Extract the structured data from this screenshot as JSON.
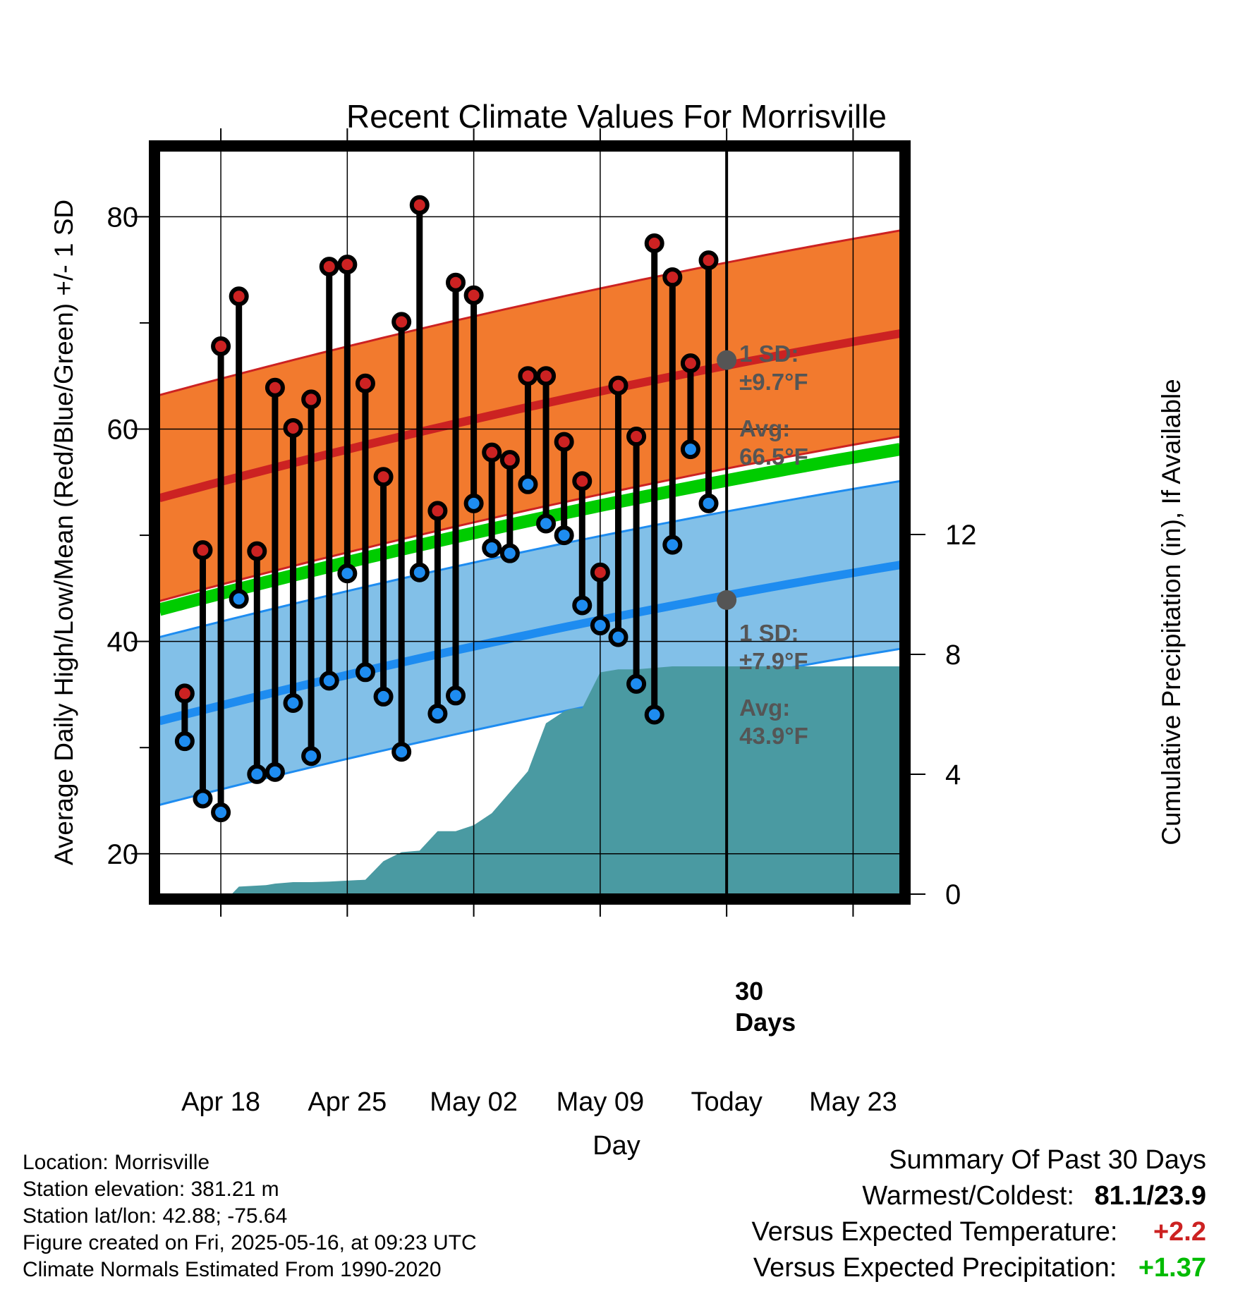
{
  "chart_data": {
    "type": "line",
    "title": "Recent Climate Values For Morrisville",
    "xlabel": "Day",
    "ylabel": "Average Daily High/Low/Mean (Red/Blue/Green) +/- 1 SD",
    "y2label": "Cumulative Precipitation (in), If Available",
    "ylim": [
      16.2,
      86.2
    ],
    "y2lim": [
      0,
      24.8
    ],
    "yticks": [
      "20",
      "40",
      "60",
      "80"
    ],
    "y2ticks": [
      "0",
      "4",
      "8",
      "12"
    ],
    "xlim": [
      -3.4,
      37.6
    ],
    "xticks": [
      {
        "day": 0,
        "label": "Apr 18"
      },
      {
        "day": 7,
        "label": "Apr 25"
      },
      {
        "day": 14,
        "label": "May 02"
      },
      {
        "day": 21,
        "label": "May 09"
      },
      {
        "day": 28,
        "label": "Today"
      },
      {
        "day": 35,
        "label": "May 23"
      }
    ],
    "today_day": 28,
    "today_label": "30 Days",
    "grid": true,
    "colors": {
      "high": "#cc2222",
      "high_band": "#f27a2e",
      "low": "#1e8cf0",
      "low_band": "#82c0e8",
      "mean": "#00cc00",
      "precip": "#4a9aa2",
      "annot": "#555555"
    },
    "normal_high": {
      "start": 53.5,
      "end": 69.0,
      "sd": 9.7
    },
    "normal_low": {
      "start": 32.5,
      "end": 47.2,
      "sd": 7.9
    },
    "normal_mean": {
      "start": 43.0,
      "end": 58.1
    },
    "annotations": {
      "high_sd": "1 SD:",
      "high_sd_value": "±9.7°F",
      "high_avg": "Avg:",
      "high_avg_value": "66.5°F",
      "low_sd": "1 SD:",
      "low_sd_value": "±7.9°F",
      "low_avg": "Avg:",
      "low_avg_value": "43.9°F",
      "high_avg_num": 66.5,
      "low_avg_num": 43.9
    },
    "series": [
      {
        "name": "High",
        "values": [
          35.1,
          48.6,
          67.8,
          72.5,
          48.5,
          63.9,
          60.1,
          62.8,
          75.3,
          75.5,
          64.3,
          55.5,
          70.1,
          81.1,
          52.3,
          73.8,
          72.6,
          57.8,
          57.1,
          65.0,
          65.0,
          58.8,
          55.1,
          46.5,
          64.1,
          59.3,
          77.5,
          74.3,
          66.2,
          75.9
        ]
      },
      {
        "name": "Low",
        "values": [
          30.6,
          25.2,
          23.9,
          44.0,
          27.5,
          27.7,
          34.2,
          29.2,
          36.3,
          46.4,
          37.1,
          34.8,
          29.6,
          46.5,
          33.2,
          34.9,
          53.0,
          48.8,
          48.3,
          54.8,
          51.1,
          50.0,
          43.4,
          41.5,
          40.4,
          36.0,
          33.1,
          49.1,
          58.1,
          53.0
        ]
      },
      {
        "name": "Cumulative Precipitation",
        "x": [
          -3.4,
          0.6,
          1.0,
          2.5,
          3.0,
          4.0,
          5.0,
          6.0,
          7.0,
          8.0,
          9.0,
          10.0,
          11.0,
          12.0,
          13.0,
          14.0,
          15.0,
          16.0,
          17.0,
          18.0,
          19.0,
          19.5,
          20.0,
          21.0,
          22.0,
          23.0,
          24.0,
          25.0,
          26.0,
          27.0,
          28.0,
          37.6
        ],
        "values": [
          0,
          0,
          0.25,
          0.3,
          0.35,
          0.4,
          0.4,
          0.42,
          0.45,
          0.48,
          1.1,
          1.4,
          1.45,
          2.1,
          2.1,
          2.3,
          2.7,
          3.4,
          4.1,
          5.7,
          6.1,
          6.2,
          6.2,
          7.4,
          7.5,
          7.5,
          7.55,
          7.6,
          7.6,
          7.6,
          7.6,
          7.6
        ]
      }
    ]
  },
  "info": {
    "location": "Location: Morrisville",
    "elevation": "Station elevation: 381.21 m",
    "latlon": "Station lat/lon: 42.88; -75.64",
    "created": "Figure created on Fri, 2025-05-16, at 09:23 UTC",
    "normals": "Climate Normals Estimated From 1990-2020"
  },
  "summary": {
    "title": "Summary Of Past 30 Days",
    "warm_label": "Warmest/Coldest:",
    "warm_value": "81.1/23.9",
    "temp_label": "Versus Expected Temperature:",
    "temp_value": "+2.2",
    "precip_label": "Versus Expected Precipitation:",
    "precip_value": "+1.37",
    "temp_color": "#cc2222",
    "precip_color": "#00bb00"
  }
}
